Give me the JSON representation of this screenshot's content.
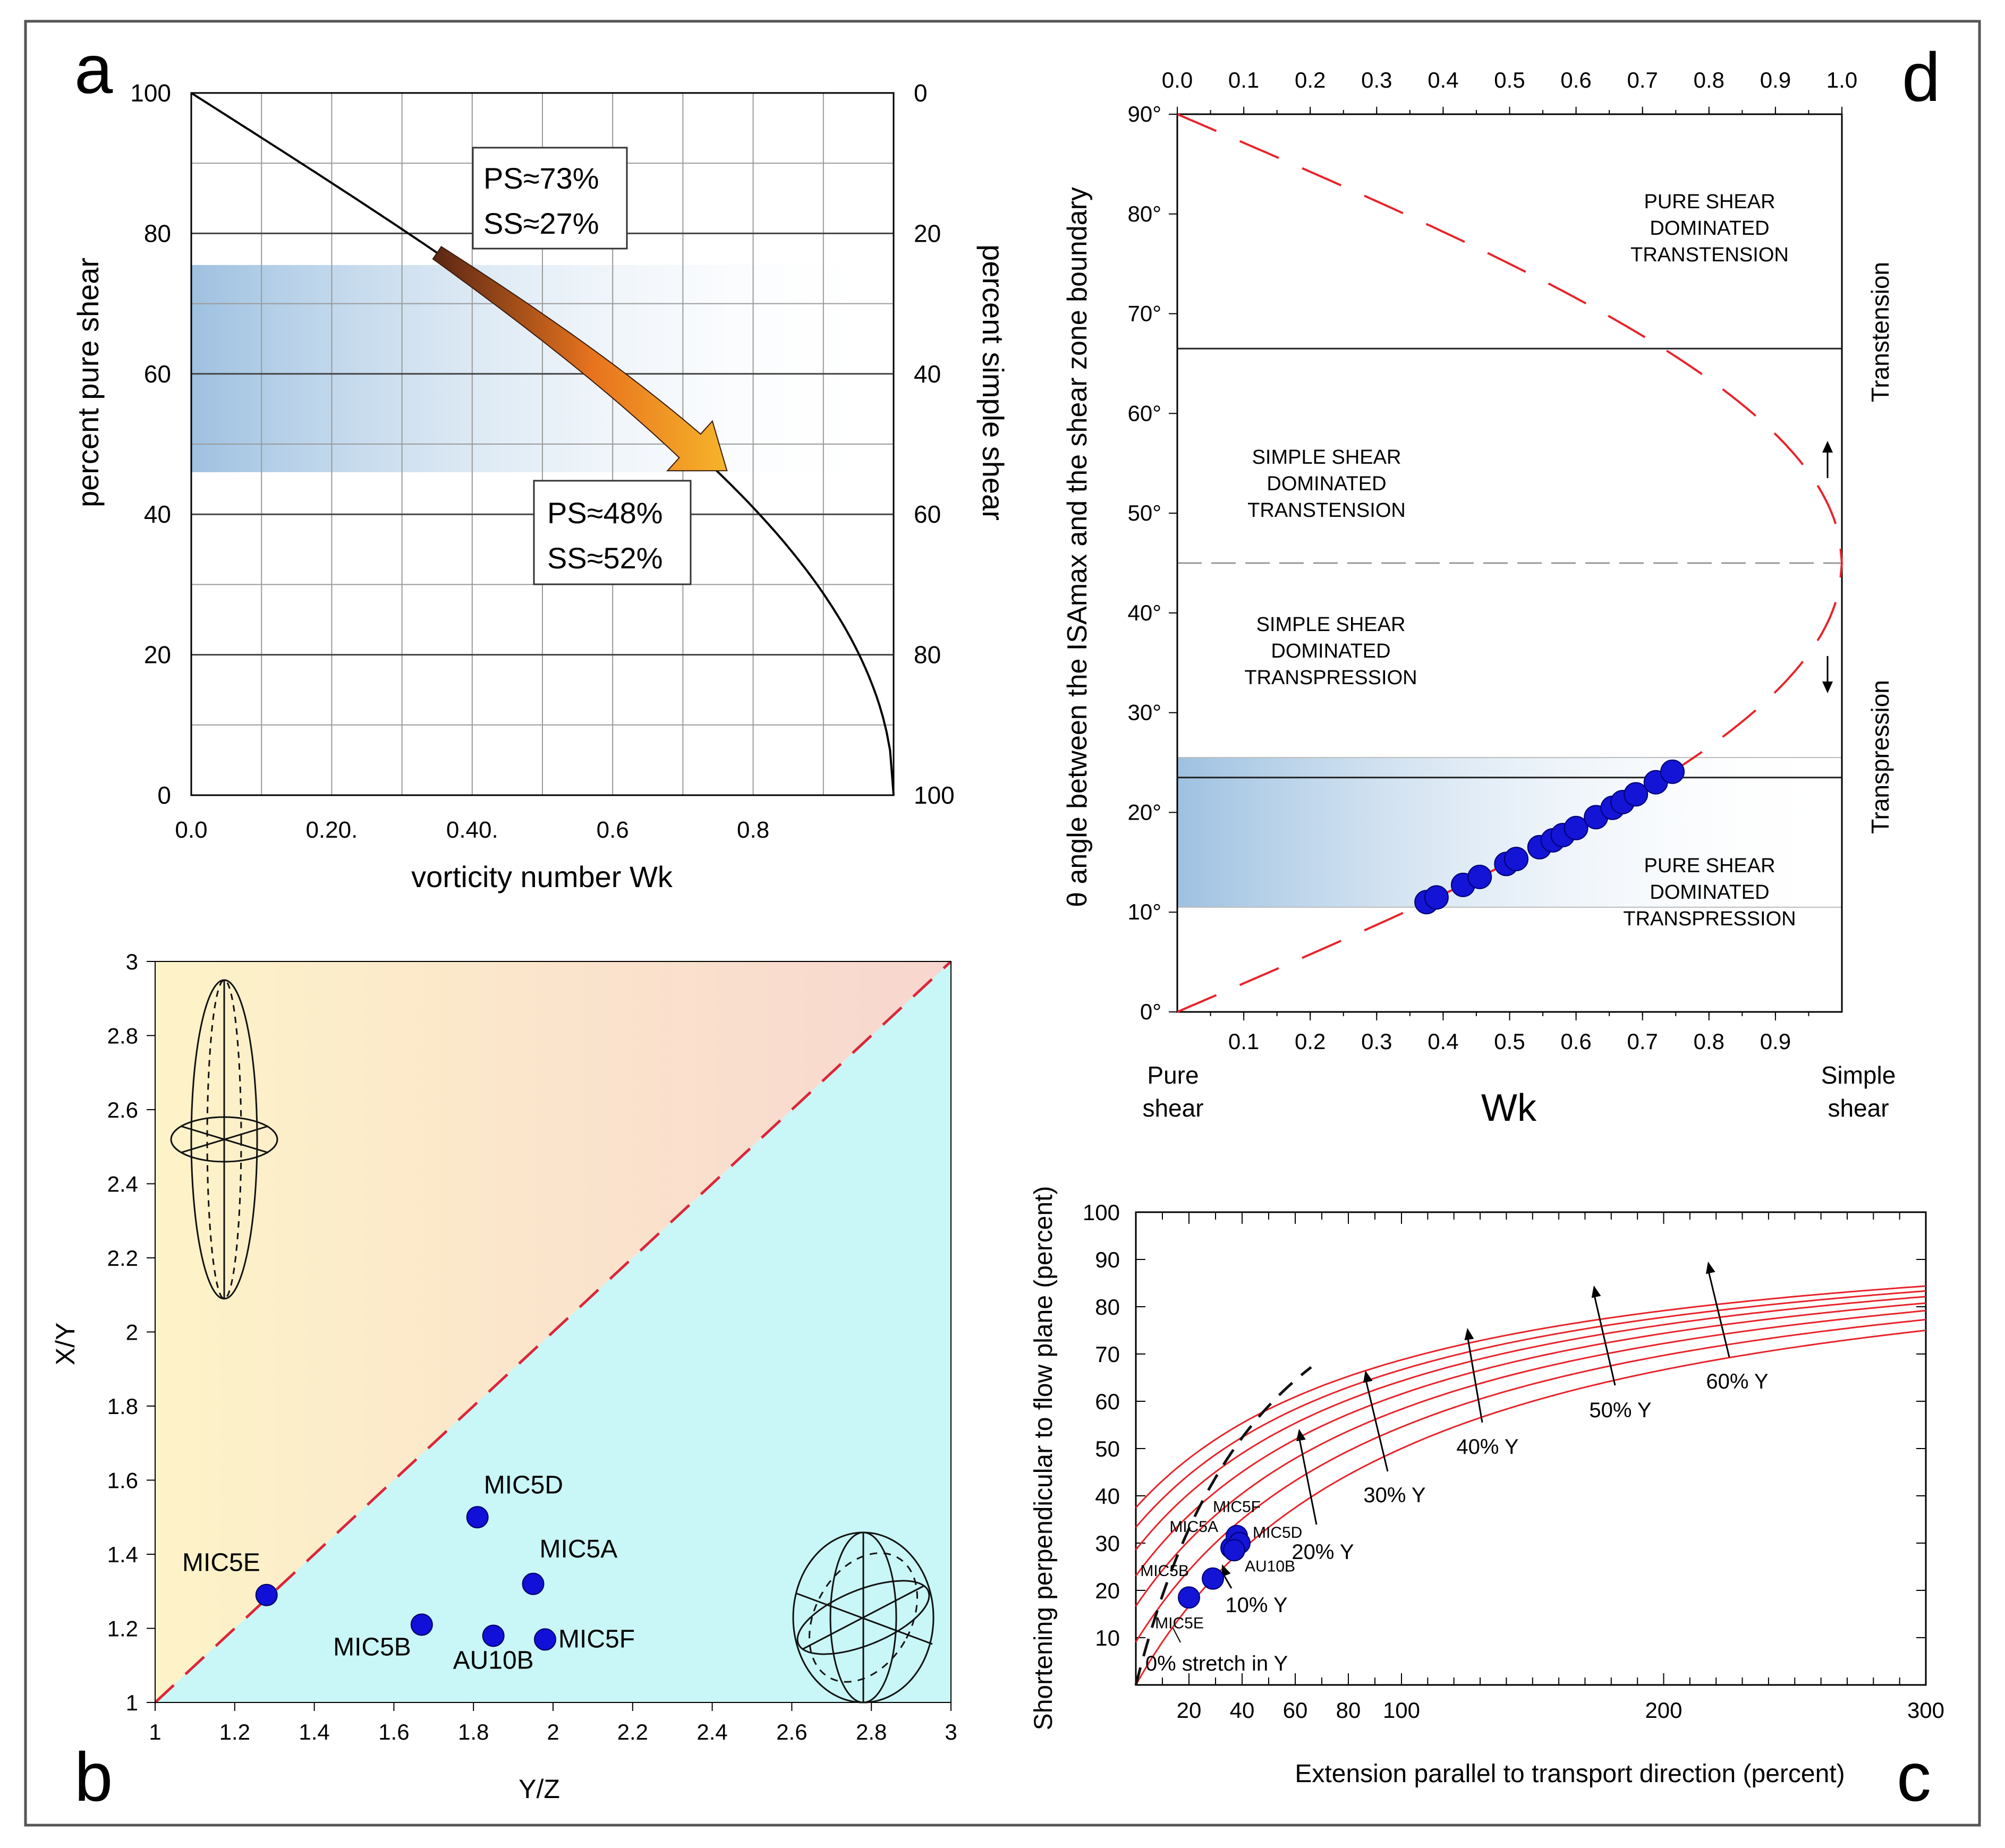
{
  "panel_letters": {
    "a": "a",
    "b": "b",
    "c": "c",
    "d": "d"
  },
  "chart_data": [
    {
      "id": "a",
      "type": "line",
      "title": "",
      "xlabel": "vorticity number Wk",
      "ylabel": "percent pure shear",
      "ylabel_right": "percent simple shear",
      "xlim": [
        0,
        1.0
      ],
      "ylim": [
        0,
        100
      ],
      "x_ticks": [
        {
          "value": 0.0,
          "label": "0.0"
        },
        {
          "value": 0.2,
          "label": "0.20."
        },
        {
          "value": 0.4,
          "label": "0.40."
        },
        {
          "value": 0.6,
          "label": "0.6"
        },
        {
          "value": 0.8,
          "label": "0.8"
        }
      ],
      "y_ticks_left": [
        0,
        20,
        40,
        60,
        80,
        100
      ],
      "y_ticks_right": [
        {
          "value": 100,
          "label": "0"
        },
        {
          "value": 80,
          "label": "20"
        },
        {
          "value": 60,
          "label": "40"
        },
        {
          "value": 40,
          "label": "60"
        },
        {
          "value": 20,
          "label": "80"
        },
        {
          "value": 0,
          "label": "100"
        }
      ],
      "grid": true,
      "band": {
        "ymin": 46,
        "ymax": 75.5
      },
      "curve": "percent pure shear = 100 - (2/pi)*asin(Wk)*100",
      "arrow": {
        "from_wk": 0.35,
        "to_wk": 0.74
      },
      "annotations": [
        {
          "lines": [
            "PS≈73%",
            "SS≈27%"
          ]
        },
        {
          "lines": [
            "PS≈48%",
            "SS≈52%"
          ]
        }
      ]
    },
    {
      "id": "b",
      "type": "scatter",
      "xlabel": "Y/Z",
      "ylabel": "X/Y",
      "xlim": [
        1,
        3
      ],
      "ylim": [
        1,
        3
      ],
      "x_ticks": [
        "1",
        "1.2",
        "1.4",
        "1.6",
        "1.8",
        "2",
        "2.2",
        "2.4",
        "2.6",
        "2.8",
        "3"
      ],
      "y_ticks": [
        "1",
        "1.2",
        "1.4",
        "1.6",
        "1.8",
        "2",
        "2.2",
        "2.4",
        "2.6",
        "2.8",
        "3"
      ],
      "diagonal": "X/Y = Y/Z",
      "points": [
        {
          "label": "MIC5E",
          "x": 1.28,
          "y": 1.29
        },
        {
          "label": "MIC5D",
          "x": 1.81,
          "y": 1.5
        },
        {
          "label": "MIC5A",
          "x": 1.95,
          "y": 1.32
        },
        {
          "label": "MIC5B",
          "x": 1.67,
          "y": 1.21
        },
        {
          "label": "AU10B",
          "x": 1.85,
          "y": 1.18
        },
        {
          "label": "MIC5F",
          "x": 1.98,
          "y": 1.17
        }
      ]
    },
    {
      "id": "c",
      "type": "line",
      "xlabel": "Extension parallel to transport direction (percent)",
      "ylabel": "Shortening perpendicular to flow plane (percent)",
      "xlim": [
        0,
        300
      ],
      "ylim": [
        0,
        100
      ],
      "x_ticks": [
        "20",
        "40",
        "60",
        "80",
        "100",
        "200",
        "300"
      ],
      "y_ticks": [
        "10",
        "20",
        "30",
        "40",
        "50",
        "60",
        "70",
        "80",
        "90",
        "100"
      ],
      "series": [
        {
          "name": "0% stretch in Y",
          "stretch": 0.0
        },
        {
          "name": "10% Y",
          "stretch": 0.1
        },
        {
          "name": "20% Y",
          "stretch": 0.2
        },
        {
          "name": "30% Y",
          "stretch": 0.3
        },
        {
          "name": "40% Y",
          "stretch": 0.4
        },
        {
          "name": "50% Y",
          "stretch": 0.5
        },
        {
          "name": "60% Y",
          "stretch": 0.6
        }
      ],
      "curve_labels": [
        "0% stretch in Y",
        "10% Y",
        "20% Y",
        "30% Y",
        "40% Y",
        "50% Y",
        "60% Y"
      ],
      "points": [
        {
          "label": "MIC5E",
          "x": 20,
          "y": 18.5
        },
        {
          "label": "MIC5B",
          "x": 29,
          "y": 22.5
        },
        {
          "label": "MIC5A",
          "x": 36,
          "y": 29
        },
        {
          "label": "MIC5F",
          "x": 38,
          "y": 31.5
        },
        {
          "label": "MIC5D",
          "x": 39,
          "y": 30
        },
        {
          "label": "AU10B",
          "x": 37,
          "y": 28.5
        }
      ]
    },
    {
      "id": "d",
      "type": "scatter",
      "xlabel": "Wk",
      "ylabel": "θ angle between the ISAmax and the shear zone boundary",
      "xlim": [
        0,
        1
      ],
      "ylim": [
        0,
        90
      ],
      "x_ticks_top": [
        "0.0",
        "0.1",
        "0.2",
        "0.3",
        "0.4",
        "0.5",
        "0.6",
        "0.7",
        "0.8",
        "0.9",
        "1.0"
      ],
      "x_ticks_bottom": [
        "0.1",
        "0.2",
        "0.3",
        "0.4",
        "0.5",
        "0.6",
        "0.7",
        "0.8",
        "0.9"
      ],
      "y_ticks": [
        "0°",
        "10°",
        "20°",
        "30°",
        "40°",
        "50°",
        "60°",
        "70°",
        "80°",
        "90°"
      ],
      "end_labels": {
        "left": [
          "Pure",
          "shear"
        ],
        "right": [
          "Simple",
          "shear"
        ]
      },
      "band": {
        "ymin": 10.5,
        "ymax": 25.5
      },
      "hlines": [
        66.5,
        23.5
      ],
      "dashed_hline": 45,
      "regions": [
        {
          "lines": [
            "PURE SHEAR",
            "DOMINATED",
            "TRANSTENSION"
          ]
        },
        {
          "lines": [
            "SIMPLE SHEAR",
            "DOMINATED",
            "TRANSTENSION"
          ]
        },
        {
          "lines": [
            "SIMPLE SHEAR",
            "DOMINATED",
            "TRANSPRESSION"
          ]
        },
        {
          "lines": [
            "PURE SHEAR",
            "DOMINATED",
            "TRANSPRESSION"
          ]
        }
      ],
      "side_labels": [
        "Transtension",
        "Transpression"
      ],
      "points_wk": [
        0.375,
        0.39,
        0.43,
        0.455,
        0.495,
        0.51,
        0.545,
        0.565,
        0.58,
        0.6,
        0.63,
        0.655,
        0.67,
        0.69,
        0.72,
        0.745
      ]
    }
  ]
}
